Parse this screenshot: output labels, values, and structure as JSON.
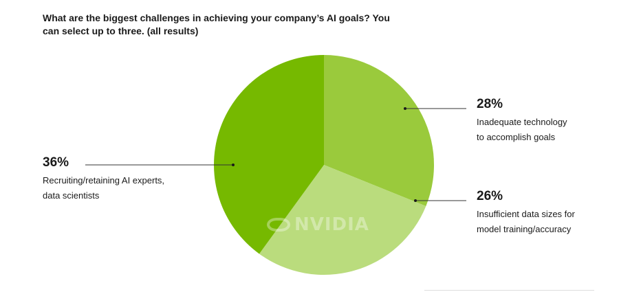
{
  "title": "What are the biggest challenges in achieving your company’s AI goals? You can select up to three. (all results)",
  "watermark": "NVIDIA",
  "chart_data": {
    "type": "pie",
    "slices": [
      {
        "label": "Inadequate technology\nto accomplish goals",
        "label_lines": [
          "Inadequate technology",
          "to accomplish goals"
        ],
        "percent_label": "28%",
        "value": 28,
        "color": "#9aca3c"
      },
      {
        "label": "Insufficient data sizes for\nmodel training/accuracy",
        "label_lines": [
          "Insufficient data sizes for",
          "model training/accuracy"
        ],
        "percent_label": "26%",
        "value": 26,
        "color": "#badc7d"
      },
      {
        "label": "Recruiting/retaining AI experts,\ndata scientists",
        "label_lines": [
          "Recruiting/retaining AI experts,",
          "data scientists"
        ],
        "percent_label": "36%",
        "value": 36,
        "color": "#76b900"
      }
    ],
    "start_angle_deg": 0,
    "direction": "clockwise"
  }
}
